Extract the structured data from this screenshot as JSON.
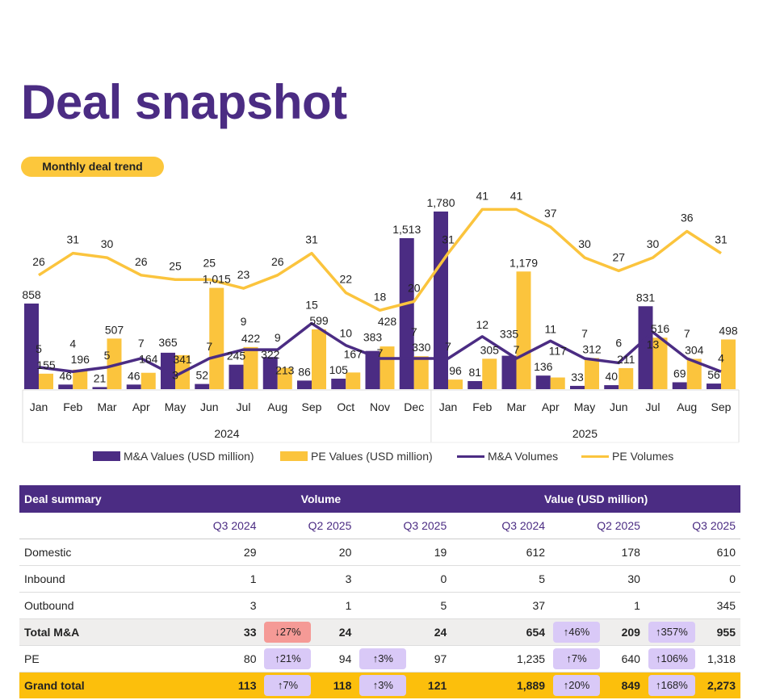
{
  "title": "Deal snapshot",
  "section_pill": "Monthly deal trend",
  "colors": {
    "purple": "#4b2c83",
    "yellow": "#fbc43d",
    "grand_total_bg": "#fcbf0c",
    "up_badge": "#d9c9f7",
    "down_badge": "#f59a96"
  },
  "chart_data": {
    "type": "bar+line",
    "categories": [
      "Jan",
      "Feb",
      "Mar",
      "Apr",
      "May",
      "Jun",
      "Jul",
      "Aug",
      "Sep",
      "Oct",
      "Nov",
      "Dec",
      "Jan",
      "Feb",
      "Mar",
      "Apr",
      "May",
      "Jun",
      "Jul",
      "Aug",
      "Sep"
    ],
    "year_groups": [
      {
        "label": "2024",
        "count": 12
      },
      {
        "label": "2025",
        "count": 9
      }
    ],
    "series": [
      {
        "name": "M&A Values (USD million)",
        "kind": "bar",
        "color": "#4b2c83",
        "labels": [
          "858",
          "46",
          "21",
          "46",
          "365",
          "52",
          "245",
          "322",
          "86",
          "105",
          "383",
          "1,513",
          "1,780",
          "81",
          "335",
          "136",
          "33",
          "40",
          "831",
          "69",
          "56"
        ],
        "values": [
          858,
          46,
          21,
          46,
          365,
          52,
          245,
          322,
          86,
          105,
          383,
          1513,
          1780,
          81,
          335,
          136,
          33,
          40,
          831,
          69,
          56
        ]
      },
      {
        "name": "PE Values (USD million)",
        "kind": "bar",
        "color": "#fbc43d",
        "labels": [
          "155",
          "196",
          "507",
          "164",
          "341",
          "1,015",
          "422",
          "213",
          "599",
          "167",
          "428",
          "330",
          "96",
          "305",
          "1,179",
          "117",
          "312",
          "211",
          "516",
          "304",
          "498"
        ],
        "values": [
          155,
          196,
          507,
          164,
          341,
          1015,
          422,
          213,
          599,
          167,
          428,
          330,
          96,
          305,
          1179,
          117,
          312,
          211,
          516,
          304,
          498
        ]
      },
      {
        "name": "M&A Volumes",
        "kind": "line",
        "color": "#4b2c83",
        "values": [
          5,
          4,
          5,
          7,
          3,
          7,
          9,
          9,
          15,
          10,
          7,
          7,
          7,
          12,
          7,
          11,
          7,
          6,
          13,
          7,
          4
        ]
      },
      {
        "name": "PE Volumes",
        "kind": "line",
        "color": "#fbc43d",
        "values": [
          26,
          31,
          30,
          26,
          25,
          25,
          23,
          26,
          31,
          22,
          18,
          20,
          31,
          41,
          41,
          37,
          30,
          27,
          30,
          36,
          31
        ]
      }
    ],
    "legend_position": "bottom",
    "grid": false
  },
  "legend": [
    "M&A Values (USD million)",
    "PE Values (USD million)",
    "M&A Volumes",
    "PE Volumes"
  ],
  "table": {
    "header": {
      "label": "Deal summary",
      "volume": "Volume",
      "value": "Value (USD million)"
    },
    "subheader": [
      "Q3 2024",
      "Q2 2025",
      "Q3 2025",
      "Q3 2024",
      "Q2 2025",
      "Q3 2025"
    ],
    "rows": [
      {
        "name": "Domestic",
        "v1": "29",
        "v2": "20",
        "v3": "19",
        "a1": "612",
        "a2": "178",
        "a3": "610"
      },
      {
        "name": "Inbound",
        "v1": "1",
        "v2": "3",
        "v3": "0",
        "a1": "5",
        "a2": "30",
        "a3": "0"
      },
      {
        "name": "Outbound",
        "v1": "3",
        "v2": "1",
        "v3": "5",
        "a1": "37",
        "a2": "1",
        "a3": "345"
      },
      {
        "name": "Total M&A",
        "v1": "33",
        "b2": "↓27%",
        "v2": "24",
        "v3": "24",
        "a1": "654",
        "c2": "↑46%",
        "a2": "209",
        "c3": "↑357%",
        "a3": "955"
      },
      {
        "name": "PE",
        "v1": "80",
        "b2": "↑21%",
        "v2": "94",
        "b3": "↑3%",
        "v3": "97",
        "a1": "1,235",
        "c2": "↑7%",
        "a2": "640",
        "c3": "↑106%",
        "a3": "1,318"
      },
      {
        "name": "Grand total",
        "v1": "113",
        "b2": "↑7%",
        "v2": "118",
        "b3": "↑3%",
        "v3": "121",
        "a1": "1,889",
        "c2": "↑20%",
        "a2": "849",
        "c3": "↑168%",
        "a3": "2,273"
      }
    ]
  }
}
